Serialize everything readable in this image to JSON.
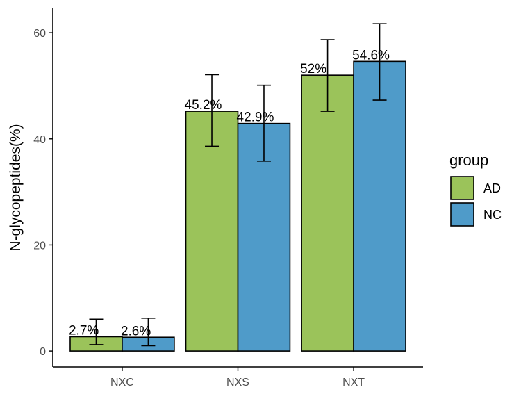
{
  "chart_data": {
    "type": "bar",
    "categories": [
      "NXC",
      "NXS",
      "NXT"
    ],
    "series": [
      {
        "name": "AD",
        "color": "#9bc35a",
        "values": [
          2.7,
          45.2,
          52.0
        ],
        "error_low": [
          1.2,
          38.6,
          45.2
        ],
        "error_high": [
          6.0,
          52.1,
          58.7
        ],
        "labels": [
          "2.7%",
          "45.2%",
          "52%"
        ]
      },
      {
        "name": "NC",
        "color": "#4f9bc9",
        "values": [
          2.6,
          42.9,
          54.6
        ],
        "error_low": [
          1.0,
          35.8,
          47.3
        ],
        "error_high": [
          6.2,
          50.1,
          61.7
        ],
        "labels": [
          "2.6%",
          "42.9%",
          "54.6%"
        ]
      }
    ],
    "title": "",
    "xlabel": "",
    "ylabel": "N-glycopeptides(%)",
    "ylim": [
      -3,
      64.6
    ],
    "yticks": [
      0,
      20,
      40,
      60
    ],
    "grid": false,
    "legend": {
      "title": "group",
      "position": "right"
    }
  }
}
